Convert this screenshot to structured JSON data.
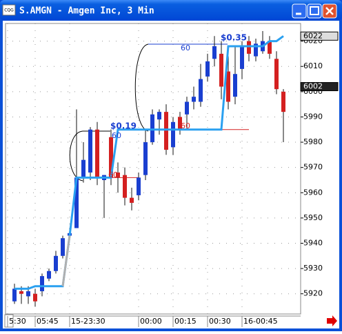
{
  "window": {
    "icon": "CQG",
    "title": "S.AMGN - Amgen Inc, 3 Min"
  },
  "chart_data": {
    "type": "candlestick",
    "categories": [
      "5:30",
      null,
      null,
      null,
      "05:45",
      null,
      null,
      null,
      null,
      "15-23:30",
      null,
      null,
      null,
      null,
      null,
      null,
      null,
      null,
      null,
      "00:00",
      null,
      null,
      null,
      null,
      "00:15",
      null,
      null,
      null,
      null,
      "00:30",
      null,
      null,
      null,
      null,
      "16-00:45",
      null,
      null,
      null,
      null,
      null
    ],
    "open": [
      5917,
      5921,
      5919,
      5920,
      5921,
      5926,
      5929,
      5935,
      5943,
      5946,
      5966,
      5968,
      5985,
      5965,
      5982,
      5968,
      5967,
      5958,
      5959,
      5967,
      5980,
      5989,
      5992,
      5978,
      5990,
      5991,
      5996,
      5996,
      6006,
      6013,
      6015,
      6008,
      5998,
      6009,
      6020,
      6014,
      6016,
      6020,
      6013,
      6000
    ],
    "high": [
      5924,
      5923,
      5923,
      5922,
      5928,
      5930,
      5937,
      5943,
      5946,
      5993,
      5980,
      5986,
      5988,
      5967,
      5985,
      5972,
      5970,
      5962,
      5968,
      5985,
      5993,
      5993,
      5995,
      5990,
      5992,
      5998,
      6002,
      6011,
      6015,
      6022,
      6020,
      6014,
      6018,
      6020,
      6022,
      6021,
      6024,
      6022,
      6016,
      6001
    ],
    "low": [
      5916,
      5916,
      5916,
      5915,
      5919,
      5925,
      5928,
      5934,
      5942,
      5946,
      5964,
      5965,
      5963,
      5950,
      5963,
      5960,
      5955,
      5953,
      5957,
      5965,
      5979,
      5983,
      5975,
      5975,
      5983,
      5985,
      5993,
      5994,
      6004,
      6010,
      5997,
      5993,
      5995,
      6005,
      6012,
      6012,
      6015,
      6013,
      5999,
      5980
    ],
    "close": [
      5922,
      5920,
      5921,
      5917,
      5927,
      5929,
      5935,
      5942,
      5944,
      5966,
      5973,
      5985,
      5966,
      5967,
      5966,
      5966,
      5958,
      5956,
      5966,
      5980,
      5991,
      5992,
      5977,
      5988,
      5985,
      5996,
      5998,
      6005,
      6012,
      6018,
      6002,
      5996,
      6007,
      6018,
      6015,
      6019,
      6020,
      6015,
      6001,
      5992
    ],
    "up_color": "#1a3fd0",
    "down_color": "#d42020",
    "series": [
      {
        "color": "#2aa0f0",
        "values": [
          5922,
          5922,
          5922,
          5923,
          5923,
          5923,
          5923,
          5923,
          5943,
          5966,
          5966,
          5966,
          5966,
          5966,
          5966,
          5985,
          5985,
          5985,
          5985,
          5985,
          5985,
          5985,
          5985,
          5985,
          5985,
          5985,
          5985,
          5985,
          5985,
          5985,
          5985,
          6018,
          6018,
          6018,
          6018,
          6018,
          6018,
          6020,
          6020,
          6022
        ]
      },
      {
        "color": "#b0b0b0",
        "values": [
          null,
          null,
          null,
          null,
          null,
          null,
          null,
          5923,
          5943,
          null,
          null,
          null,
          null,
          null,
          null,
          null,
          null,
          null,
          null,
          null,
          null,
          null,
          null,
          null,
          null,
          null,
          null,
          null,
          null,
          null,
          null,
          null,
          null,
          null,
          null,
          null,
          null,
          null,
          null,
          null
        ]
      }
    ],
    "levels": [
      {
        "value": 5966,
        "color": "#d42020",
        "from": 10,
        "to": 18
      },
      {
        "value": 5985,
        "color": "#d42020",
        "from": 23,
        "to": 34
      }
    ],
    "annotations": [
      "$0.19",
      "60",
      "60",
      "60",
      "$0.35",
      "60"
    ],
    "markers": [
      6022,
      6002
    ],
    "ylim": [
      5912,
      6027
    ],
    "yticks": [
      5920,
      5930,
      5940,
      5950,
      5960,
      5970,
      5980,
      5990,
      6000,
      6010,
      6020
    ],
    "grid": true
  }
}
